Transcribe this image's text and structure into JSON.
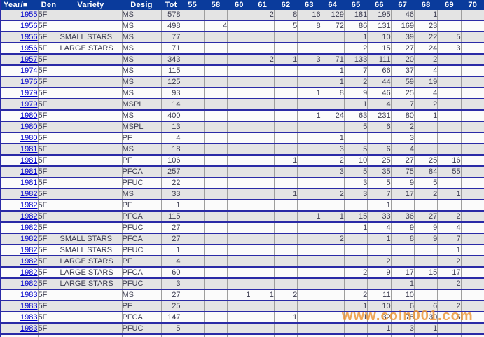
{
  "colors": {
    "header-bg": "#0a3b9c",
    "row-line": "#2a2aa6",
    "grid": "#9e9e9e",
    "row-gray": "#e4e4e4",
    "row-white": "#fbfbfb",
    "text": "#3c3c50",
    "link": "#0000cc",
    "watermark": "#ed9434"
  },
  "watermark": {
    "text": "www.coin001.com"
  },
  "table": {
    "columns": [
      "Year/■",
      "Den",
      "Variety",
      "Desig",
      "Tot",
      "55",
      "58",
      "60",
      "61",
      "62",
      "63",
      "64",
      "65",
      "66",
      "67",
      "68",
      "69",
      "70"
    ],
    "rows": [
      [
        "1955",
        "5F",
        "",
        "MS",
        "578",
        "",
        "",
        "",
        "2",
        "8",
        "16",
        "129",
        "181",
        "195",
        "46",
        "1",
        "",
        ""
      ],
      [
        "1956",
        "5F",
        "",
        "MS",
        "498",
        "",
        "4",
        "",
        "",
        "5",
        "8",
        "72",
        "86",
        "131",
        "169",
        "23",
        "",
        ""
      ],
      [
        "1956",
        "5F",
        "SMALL STARS",
        "MS",
        "77",
        "",
        "",
        "",
        "",
        "",
        "",
        "",
        "1",
        "10",
        "39",
        "22",
        "5",
        ""
      ],
      [
        "1956",
        "5F",
        "LARGE STARS",
        "MS",
        "71",
        "",
        "",
        "",
        "",
        "",
        "",
        "",
        "2",
        "15",
        "27",
        "24",
        "3",
        ""
      ],
      [
        "1957",
        "5F",
        "",
        "MS",
        "343",
        "",
        "",
        "",
        "2",
        "1",
        "3",
        "71",
        "133",
        "111",
        "20",
        "2",
        "",
        ""
      ],
      [
        "1974",
        "5F",
        "",
        "MS",
        "115",
        "",
        "",
        "",
        "",
        "",
        "",
        "1",
        "7",
        "66",
        "37",
        "4",
        "",
        ""
      ],
      [
        "1976",
        "5F",
        "",
        "MS",
        "125",
        "",
        "",
        "",
        "",
        "",
        "",
        "1",
        "2",
        "44",
        "59",
        "19",
        "",
        ""
      ],
      [
        "1979",
        "5F",
        "",
        "MS",
        "93",
        "",
        "",
        "",
        "",
        "",
        "1",
        "8",
        "9",
        "46",
        "25",
        "4",
        "",
        ""
      ],
      [
        "1979",
        "5F",
        "",
        "MSPL",
        "14",
        "",
        "",
        "",
        "",
        "",
        "",
        "",
        "1",
        "4",
        "7",
        "2",
        "",
        ""
      ],
      [
        "1980",
        "5F",
        "",
        "MS",
        "400",
        "",
        "",
        "",
        "",
        "",
        "1",
        "24",
        "63",
        "231",
        "80",
        "1",
        "",
        ""
      ],
      [
        "1980",
        "5F",
        "",
        "MSPL",
        "13",
        "",
        "",
        "",
        "",
        "",
        "",
        "",
        "5",
        "6",
        "2",
        "",
        "",
        ""
      ],
      [
        "1980",
        "5F",
        "",
        "PF",
        "4",
        "",
        "",
        "",
        "",
        "",
        "",
        "1",
        "",
        "",
        "3",
        "",
        "",
        ""
      ],
      [
        "1981",
        "5F",
        "",
        "MS",
        "18",
        "",
        "",
        "",
        "",
        "",
        "",
        "3",
        "5",
        "6",
        "4",
        "",
        "",
        ""
      ],
      [
        "1981",
        "5F",
        "",
        "PF",
        "106",
        "",
        "",
        "",
        "",
        "1",
        "",
        "2",
        "10",
        "25",
        "27",
        "25",
        "16",
        ""
      ],
      [
        "1981",
        "5F",
        "",
        "PFCA",
        "257",
        "",
        "",
        "",
        "",
        "",
        "",
        "3",
        "5",
        "35",
        "75",
        "84",
        "55",
        ""
      ],
      [
        "1981",
        "5F",
        "",
        "PFUC",
        "22",
        "",
        "",
        "",
        "",
        "",
        "",
        "",
        "3",
        "5",
        "9",
        "5",
        "",
        ""
      ],
      [
        "1982",
        "5F",
        "",
        "MS",
        "33",
        "",
        "",
        "",
        "",
        "1",
        "",
        "2",
        "3",
        "7",
        "17",
        "2",
        "1",
        ""
      ],
      [
        "1982",
        "5F",
        "",
        "PF",
        "1",
        "",
        "",
        "",
        "",
        "",
        "",
        "",
        "",
        "1",
        "",
        "",
        "",
        ""
      ],
      [
        "1982",
        "5F",
        "",
        "PFCA",
        "115",
        "",
        "",
        "",
        "",
        "",
        "1",
        "1",
        "15",
        "33",
        "36",
        "27",
        "2",
        ""
      ],
      [
        "1982",
        "5F",
        "",
        "PFUC",
        "27",
        "",
        "",
        "",
        "",
        "",
        "",
        "",
        "1",
        "4",
        "9",
        "9",
        "4",
        ""
      ],
      [
        "1982",
        "5F",
        "SMALL STARS",
        "PFCA",
        "27",
        "",
        "",
        "",
        "",
        "",
        "",
        "2",
        "",
        "1",
        "8",
        "9",
        "7",
        ""
      ],
      [
        "1982",
        "5F",
        "SMALL STARS",
        "PFUC",
        "1",
        "",
        "",
        "",
        "",
        "",
        "",
        "",
        "",
        "",
        "",
        "",
        "1",
        ""
      ],
      [
        "1982",
        "5F",
        "LARGE STARS",
        "PF",
        "4",
        "",
        "",
        "",
        "",
        "",
        "",
        "",
        "",
        "2",
        "",
        "",
        "2",
        ""
      ],
      [
        "1982",
        "5F",
        "LARGE STARS",
        "PFCA",
        "60",
        "",
        "",
        "",
        "",
        "",
        "",
        "",
        "2",
        "9",
        "17",
        "15",
        "17",
        ""
      ],
      [
        "1982",
        "5F",
        "LARGE STARS",
        "PFUC",
        "3",
        "",
        "",
        "",
        "",
        "",
        "",
        "",
        "",
        "",
        "1",
        "",
        "2",
        ""
      ],
      [
        "1983",
        "5F",
        "",
        "MS",
        "27",
        "",
        "",
        "1",
        "1",
        "2",
        "",
        "",
        "2",
        "11",
        "10",
        "",
        "",
        ""
      ],
      [
        "1983",
        "5F",
        "",
        "PF",
        "25",
        "",
        "",
        "",
        "",
        "",
        "",
        "",
        "1",
        "10",
        "6",
        "6",
        "2",
        ""
      ],
      [
        "1983",
        "5F",
        "",
        "PFCA",
        "147",
        "",
        "",
        "",
        "",
        "1",
        "",
        "",
        "1",
        "32",
        "78",
        "30",
        "5",
        ""
      ],
      [
        "1983",
        "5F",
        "",
        "PFUC",
        "5",
        "",
        "",
        "",
        "",
        "",
        "",
        "",
        "",
        "1",
        "3",
        "1",
        "",
        ""
      ]
    ]
  }
}
